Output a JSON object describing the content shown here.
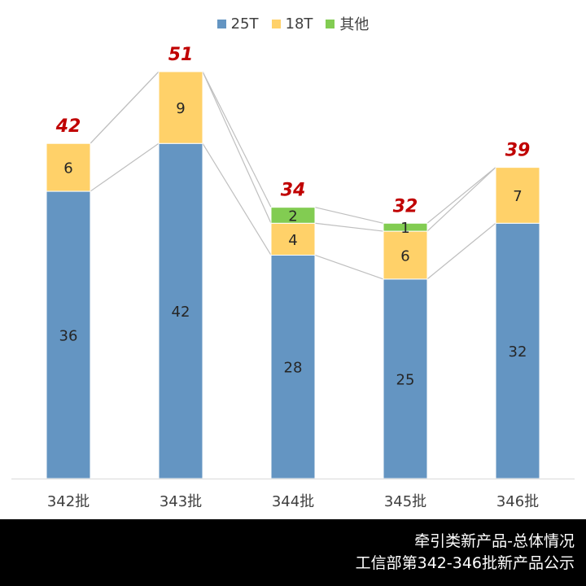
{
  "legend": {
    "items": [
      {
        "label": "25T",
        "color": "#6495C2"
      },
      {
        "label": "18T",
        "color": "#FFD169"
      },
      {
        "label": "其他",
        "color": "#82CC52"
      }
    ]
  },
  "footer": {
    "line1": "牵引类新产品-总体情况",
    "line2": "工信部第342-346批新产品公示"
  },
  "chart_data": {
    "type": "bar",
    "stacked": true,
    "categories": [
      "342批",
      "343批",
      "344批",
      "345批",
      "346批"
    ],
    "series": [
      {
        "name": "25T",
        "color": "#6495C2",
        "values": [
          36,
          42,
          28,
          25,
          32
        ]
      },
      {
        "name": "18T",
        "color": "#FFD169",
        "values": [
          6,
          9,
          4,
          6,
          7
        ]
      },
      {
        "name": "其他",
        "color": "#82CC52",
        "values": [
          0,
          0,
          2,
          1,
          0
        ]
      }
    ],
    "totals": [
      "42",
      "51",
      "34",
      "32",
      "39"
    ],
    "total_color": "#C00000",
    "ylim": [
      0,
      51
    ],
    "grid": false,
    "legend_position": "top",
    "series_lines": true
  }
}
